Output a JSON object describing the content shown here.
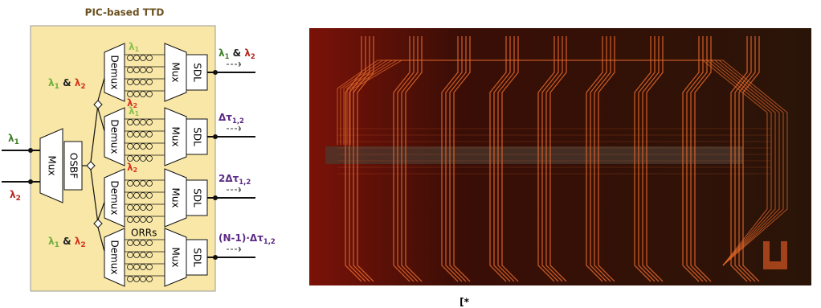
{
  "title": "PIC-based TTD",
  "inputs": [
    [
      {
        "t": "λ",
        "color": "#3f7f2a"
      },
      {
        "sub": "1",
        "color": "#3f7f2a"
      }
    ],
    [
      {
        "t": "λ",
        "color": "#b3261e"
      },
      {
        "sub": "2",
        "color": "#b3261e"
      }
    ]
  ],
  "input_mux": "Mux",
  "osbf": "OSBF",
  "split_labels": [
    [
      {
        "t": "λ",
        "color": "#6fae3e"
      },
      {
        "sub": "1",
        "color": "#6fae3e"
      },
      {
        "t": " & ",
        "color": "#222"
      },
      {
        "t": "λ",
        "color": "#d4341f"
      },
      {
        "sub": "2",
        "color": "#d4341f"
      }
    ],
    [
      {
        "t": "λ",
        "color": "#6fae3e"
      },
      {
        "sub": "1",
        "color": "#6fae3e"
      },
      {
        "t": " & ",
        "color": "#222"
      },
      {
        "t": "λ",
        "color": "#d4341f"
      },
      {
        "sub": "2",
        "color": "#d4341f"
      }
    ]
  ],
  "branches": [
    {
      "demux": "Demux",
      "mux": "Mux",
      "sdl": "SDL",
      "top": [
        {
          "t": "λ",
          "color": "#8cc04a"
        },
        {
          "sub": "1",
          "color": "#8cc04a"
        }
      ],
      "bottom": [
        {
          "t": "λ",
          "color": "#d4341f"
        },
        {
          "sub": "2",
          "color": "#d4341f"
        }
      ],
      "output": [
        {
          "t": "λ",
          "color": "#3f7f2a"
        },
        {
          "sub": "1",
          "color": "#3f7f2a"
        },
        {
          "t": " & ",
          "color": "#222"
        },
        {
          "t": "λ",
          "color": "#b3261e"
        },
        {
          "sub": "2",
          "color": "#b3261e"
        }
      ]
    },
    {
      "demux": "Demux",
      "mux": "Mux",
      "sdl": "SDL",
      "top": [
        {
          "t": "λ",
          "color": "#8cc04a"
        },
        {
          "sub": "1",
          "color": "#8cc04a"
        }
      ],
      "bottom": [
        {
          "t": "λ",
          "color": "#d4341f"
        },
        {
          "sub": "2",
          "color": "#d4341f"
        }
      ],
      "output": [
        {
          "t": "Δτ",
          "color": "#5b2a86"
        },
        {
          "sub": "1,2",
          "color": "#5b2a86"
        }
      ]
    },
    {
      "demux": "Demux",
      "mux": "Mux",
      "sdl": "SDL",
      "output": [
        {
          "t": "2Δτ",
          "color": "#5b2a86"
        },
        {
          "sub": "1,2",
          "color": "#5b2a86"
        }
      ]
    },
    {
      "demux": "Demux",
      "mux": "Mux",
      "sdl": "SDL",
      "rings": "ORRs",
      "output": [
        {
          "t": "(N-1)·Δτ",
          "color": "#5b2a86"
        },
        {
          "sub": "1,2",
          "color": "#5b2a86"
        }
      ]
    }
  ],
  "caption": "[*"
}
